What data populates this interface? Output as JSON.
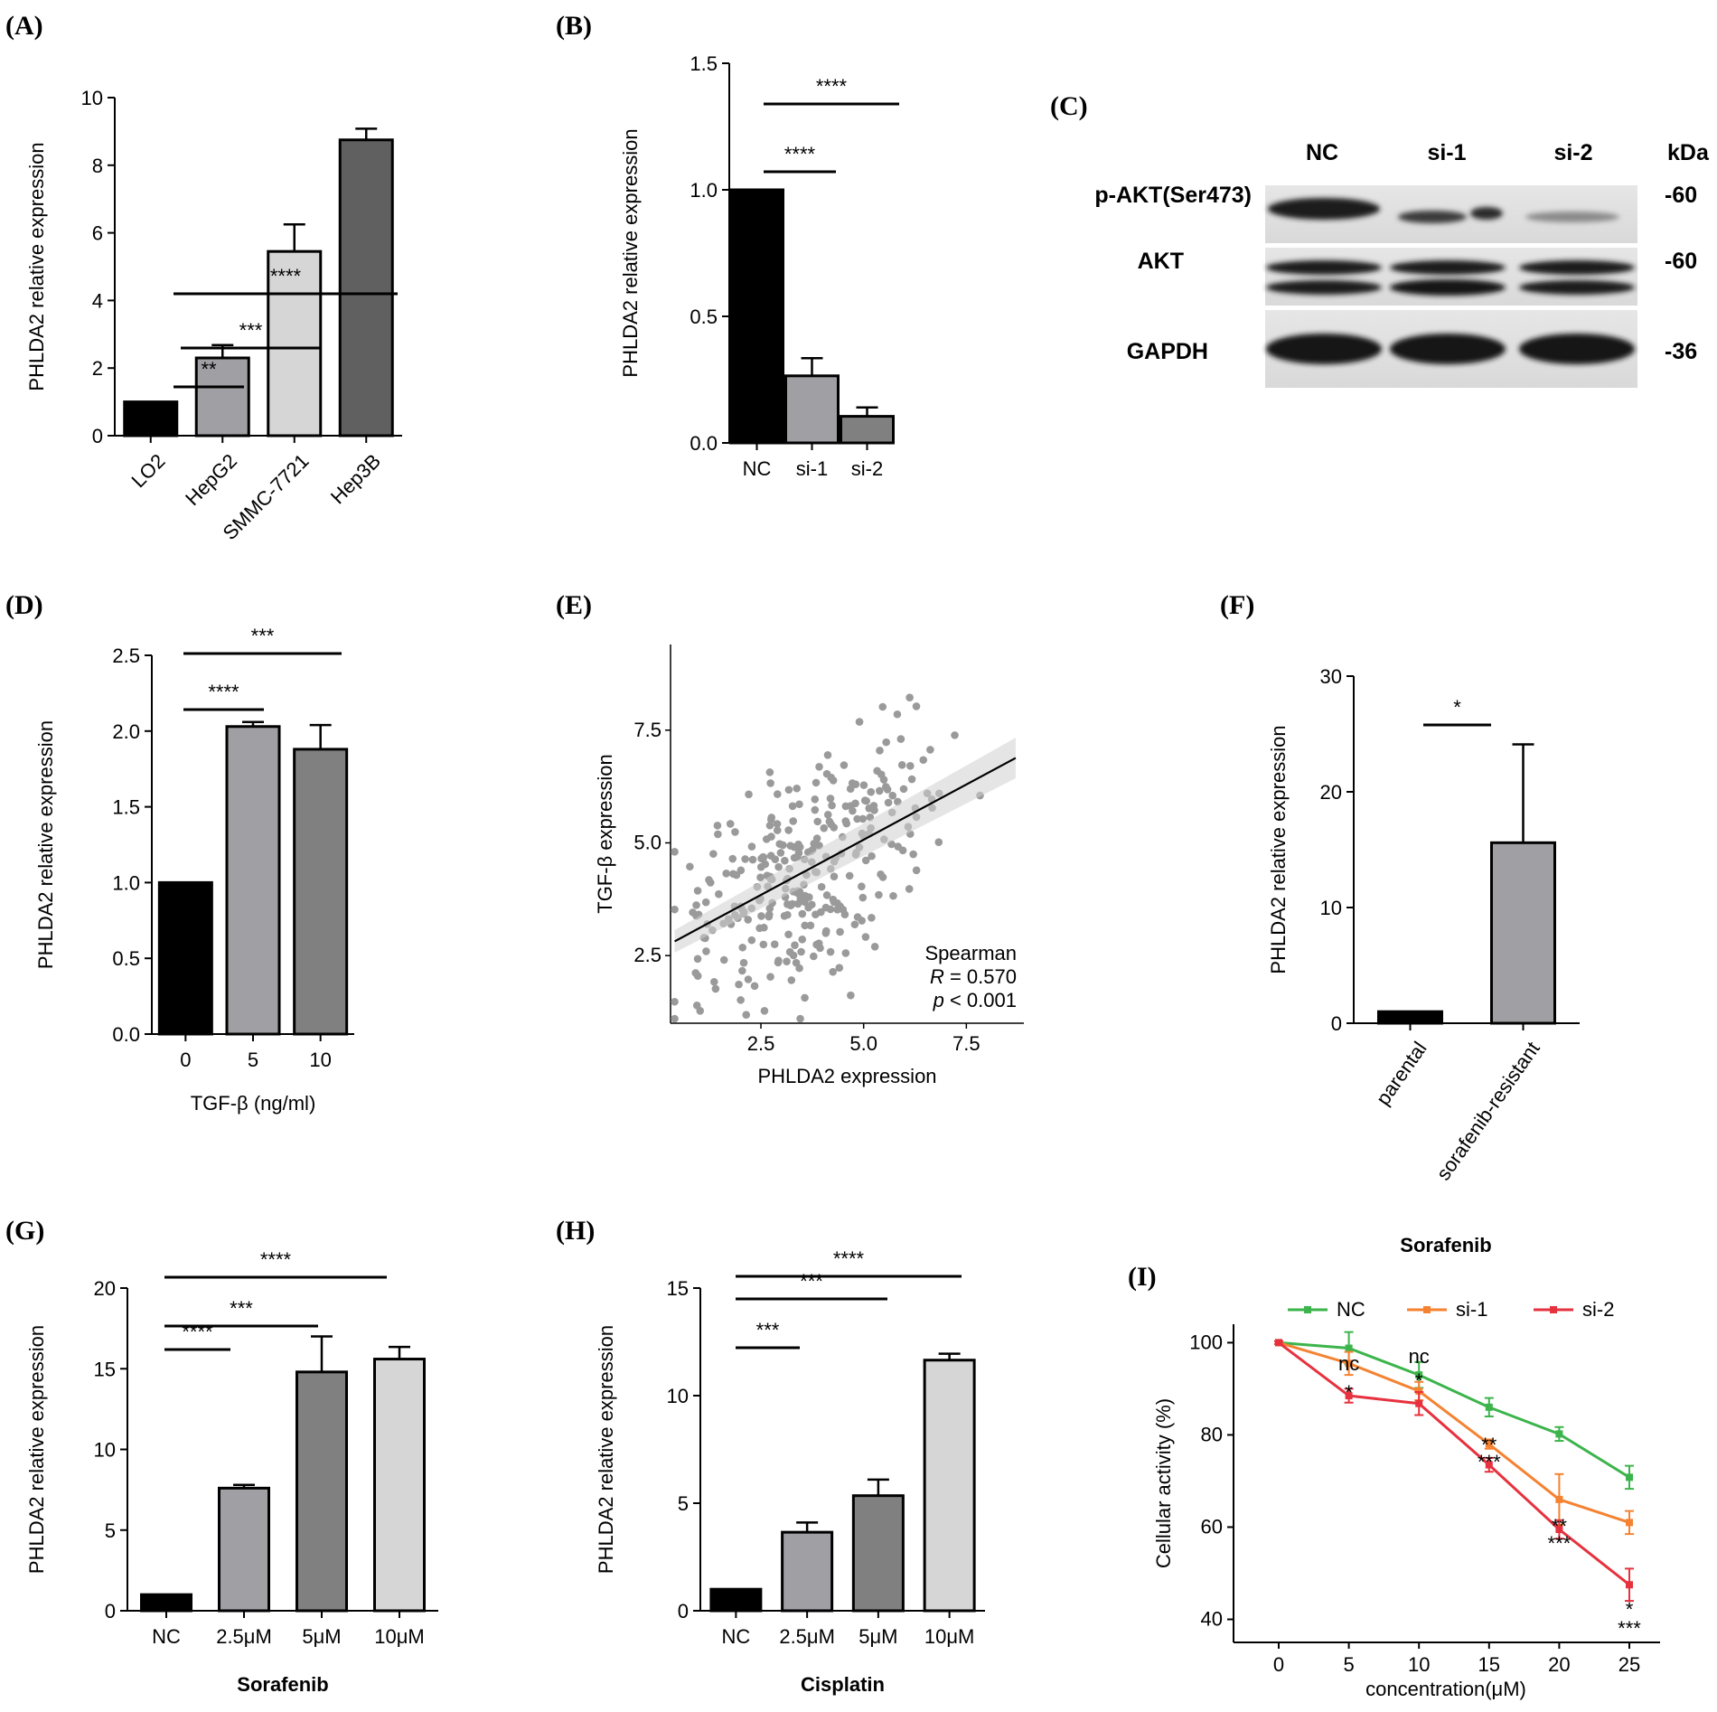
{
  "panels": {
    "A": {
      "label": "(A)",
      "type": "bar",
      "ylabel": "PHLDA2 relative expression",
      "ylim": [
        0,
        10
      ],
      "yticks": [
        0,
        2,
        4,
        6,
        8,
        10
      ],
      "tick_rotation": -45,
      "categories": [
        "LO2",
        "HepG2",
        "SMMC-7721",
        "Hep3B"
      ],
      "values": [
        1.0,
        2.3,
        5.45,
        8.75
      ],
      "errors": [
        0,
        0.38,
        0.8,
        0.33
      ],
      "colors": [
        "#000000",
        "#a0a0a4",
        "#d6d6d6",
        "#606060"
      ],
      "sig": [
        {
          "text": "**",
          "from": 0,
          "to": 1
        },
        {
          "text": "***",
          "from": 0,
          "to": 2
        },
        {
          "text": "****",
          "from": 0,
          "to": 3
        }
      ]
    },
    "B": {
      "label": "(B)",
      "type": "bar",
      "ylabel": "PHLDA2 relative expression",
      "ylim": [
        0,
        1.5
      ],
      "yticks": [
        "0.0",
        "0.5",
        "1.0",
        "1.5"
      ],
      "tick_rotation": 0,
      "categories": [
        "NC",
        "si-1",
        "si-2"
      ],
      "values": [
        1.0,
        0.265,
        0.105
      ],
      "errors": [
        0,
        0.07,
        0.035
      ],
      "colors": [
        "#000000",
        "#a0a0a4",
        "#808080"
      ],
      "sig": [
        {
          "text": "****",
          "from": 0,
          "to": 1
        },
        {
          "text": "****",
          "from": 0,
          "to": 2
        }
      ]
    },
    "C": {
      "label": "(C)",
      "lanes": [
        "NC",
        "si-1",
        "si-2"
      ],
      "kda_label": "kDa",
      "bands": [
        {
          "name": "p-AKT(Ser473)",
          "kda": "-60"
        },
        {
          "name": "AKT",
          "kda": "-60"
        },
        {
          "name": "GAPDH",
          "kda": "-36"
        }
      ]
    },
    "D": {
      "label": "(D)",
      "type": "bar",
      "ylabel": "PHLDA2 relative expression",
      "xlabel": "TGF-β (ng/ml)",
      "ylim": [
        0,
        2.5
      ],
      "yticks": [
        "0.0",
        "0.5",
        "1.0",
        "1.5",
        "2.0",
        "2.5"
      ],
      "tick_rotation": 0,
      "categories": [
        "0",
        "5",
        "10"
      ],
      "values": [
        1.0,
        2.03,
        1.88
      ],
      "errors": [
        0,
        0.03,
        0.16
      ],
      "colors": [
        "#000000",
        "#a0a0a4",
        "#808080"
      ],
      "sig": [
        {
          "text": "****",
          "from": 0,
          "to": 1
        },
        {
          "text": "***",
          "from": 0,
          "to": 2
        }
      ]
    },
    "E": {
      "label": "(E)",
      "type": "scatter",
      "xlabel": "PHLDA2 expression",
      "ylabel": "TGF-β expression",
      "xlim": [
        0.3,
        8.9
      ],
      "ylim": [
        1.0,
        9.4
      ],
      "xticks": [
        "2.5",
        "5.0",
        "7.5"
      ],
      "yticks": [
        "2.5",
        "5.0",
        "7.5"
      ],
      "fit": {
        "slope": 0.49,
        "intercept": 2.62
      },
      "stats": {
        "method": "Spearman",
        "r_label": "R",
        "r_value": "= 0.570",
        "p_label": "p",
        "p_value": "< 0.001"
      },
      "point_count": 300,
      "seed": 7
    },
    "F": {
      "label": "(F)",
      "type": "bar",
      "ylabel": "PHLDA2 relative expression",
      "ylim": [
        0,
        30
      ],
      "yticks": [
        0,
        10,
        20,
        30
      ],
      "tick_rotation": -55,
      "categories": [
        "parental",
        "sorafenib-resistant"
      ],
      "values": [
        1.0,
        15.6
      ],
      "errors": [
        0,
        8.5
      ],
      "colors": [
        "#000000",
        "#a0a0a4"
      ],
      "sig": [
        {
          "text": "*",
          "from": 0,
          "to": 1
        }
      ]
    },
    "G": {
      "label": "(G)",
      "type": "bar",
      "ylabel": "PHLDA2 relative expression",
      "xlabel": "Sorafenib",
      "ylim": [
        0,
        20
      ],
      "yticks": [
        0,
        5,
        10,
        15,
        20
      ],
      "tick_rotation": 0,
      "categories": [
        "NC",
        "2.5μM",
        "5μM",
        "10μM"
      ],
      "values": [
        1.0,
        7.6,
        14.8,
        15.6
      ],
      "errors": [
        0,
        0.2,
        2.2,
        0.75
      ],
      "colors": [
        "#000000",
        "#a0a0a4",
        "#808080",
        "#d6d6d6"
      ],
      "sig": [
        {
          "text": "****",
          "from": 0,
          "to": 1
        },
        {
          "text": "***",
          "from": 0,
          "to": 2
        },
        {
          "text": "****",
          "from": 0,
          "to": 3
        }
      ]
    },
    "H": {
      "label": "(H)",
      "type": "bar",
      "ylabel": "PHLDA2 relative expression",
      "xlabel": "Cisplatin",
      "ylim": [
        0,
        15
      ],
      "yticks": [
        0,
        5,
        10,
        15
      ],
      "tick_rotation": 0,
      "categories": [
        "NC",
        "2.5μM",
        "5μM",
        "10μM"
      ],
      "values": [
        1.0,
        3.65,
        5.35,
        11.65
      ],
      "errors": [
        0,
        0.45,
        0.75,
        0.3
      ],
      "colors": [
        "#000000",
        "#a0a0a4",
        "#808080",
        "#d6d6d6"
      ],
      "sig": [
        {
          "text": "***",
          "from": 0,
          "to": 1
        },
        {
          "text": "***",
          "from": 0,
          "to": 2
        },
        {
          "text": "****",
          "from": 0,
          "to": 3
        }
      ]
    },
    "I": {
      "label": "(I)",
      "type": "line",
      "title": "Sorafenib",
      "xlabel": "concentration(μM)",
      "ylabel": "Cellular activity (%)",
      "x": [
        0,
        5,
        10,
        15,
        20,
        25
      ],
      "ylim": [
        35,
        104
      ],
      "yticks": [
        40,
        60,
        80,
        100
      ],
      "series": [
        {
          "name": "NC",
          "color": "#3cb44b",
          "values": [
            100,
            98.8,
            93.0,
            86.0,
            80.2,
            70.8
          ],
          "errors": [
            0.3,
            3.5,
            2.8,
            2.0,
            1.5,
            2.5
          ]
        },
        {
          "name": "si-1",
          "color": "#f58231",
          "values": [
            100,
            95.5,
            89.5,
            78.0,
            66.0,
            61.0
          ],
          "errors": [
            0.3,
            2.5,
            2.0,
            1.0,
            5.5,
            2.5
          ]
        },
        {
          "name": "si-2",
          "color": "#e6323e",
          "values": [
            100,
            88.5,
            86.8,
            73.5,
            59.5,
            47.5
          ],
          "errors": [
            0.3,
            1.5,
            2.5,
            1.5,
            2.0,
            3.5
          ]
        }
      ],
      "annotations": [
        {
          "x": 5,
          "orange": "nc",
          "red": "*"
        },
        {
          "x": 10,
          "orange": "nc",
          "red": "*"
        },
        {
          "x": 15,
          "orange": "**",
          "red": "***"
        },
        {
          "x": 20,
          "orange": "**",
          "red": "***"
        },
        {
          "x": 25,
          "orange": "*",
          "red": "***"
        }
      ]
    }
  }
}
